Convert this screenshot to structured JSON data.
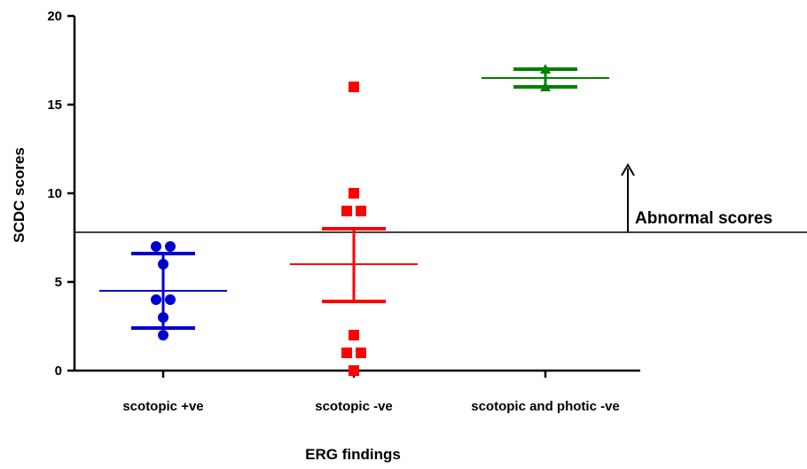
{
  "chart_data": {
    "type": "scatter",
    "title": "",
    "xlabel": "ERG findings",
    "ylabel": "SCDC scores",
    "ylim": [
      0,
      20
    ],
    "yticks": [
      "0",
      "5",
      "10",
      "15",
      "20"
    ],
    "categories": [
      "scotopic +ve",
      "scotopic -ve",
      "scotopic and photic -ve"
    ],
    "series": [
      {
        "category": "scotopic +ve",
        "color": "#0000cc",
        "marker": "circle",
        "points": [
          7,
          7,
          6,
          4,
          4,
          3,
          2
        ],
        "mean": 4.5,
        "error_upper": 6.6,
        "error_lower": 2.4
      },
      {
        "category": "scotopic -ve",
        "color": "#ff0000",
        "marker": "square",
        "points": [
          16,
          10,
          9,
          9,
          2,
          1,
          1,
          0
        ],
        "mean": 6.0,
        "error_upper": 8.0,
        "error_lower": 3.9
      },
      {
        "category": "scotopic and photic -ve",
        "color": "#008000",
        "marker": "triangle",
        "points": [
          17,
          16
        ],
        "mean": 16.5,
        "error_upper": 17.0,
        "error_lower": 16.0
      }
    ],
    "reference_line": {
      "value": 7.8,
      "annotation": "Abnormal scores",
      "arrow": "up"
    }
  }
}
